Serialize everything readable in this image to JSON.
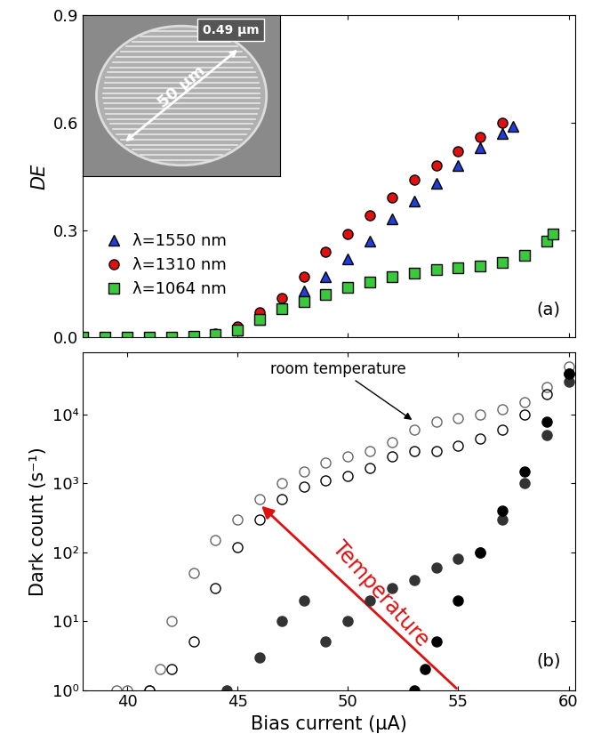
{
  "chart_data": [
    {
      "type": "scatter",
      "panel": "(a)",
      "y_label": "DE",
      "xlim": [
        38,
        60.3
      ],
      "xticks": [
        40,
        45,
        50,
        55,
        60
      ],
      "ylim": [
        0,
        0.9
      ],
      "yticks": [
        {
          "value": 0,
          "label": "0.0"
        },
        0.3,
        0.6,
        0.9
      ],
      "tick_labels": "y",
      "legend": "lower left",
      "annotations": [
        {
          "text": "50 μm"
        },
        {
          "text": "0.49 μm"
        }
      ],
      "series": [
        {
          "name": "λ=1550 nm",
          "color": "#1f3fd6",
          "marker": "triangle",
          "x": [
            38,
            39,
            40,
            41,
            42,
            43,
            44,
            45,
            46,
            47,
            48,
            49,
            50,
            51,
            52,
            53,
            54,
            55,
            56,
            57,
            57.5
          ],
          "values": [
            0,
            0,
            0,
            0,
            0,
            0,
            0.005,
            0.02,
            0.05,
            0.09,
            0.13,
            0.17,
            0.22,
            0.27,
            0.33,
            0.38,
            0.43,
            0.48,
            0.53,
            0.57,
            0.59
          ]
        },
        {
          "name": "λ=1310 nm",
          "color": "#e01010",
          "marker": "circle",
          "x": [
            38,
            39,
            40,
            41,
            42,
            43,
            44,
            45,
            46,
            47,
            48,
            49,
            50,
            51,
            52,
            53,
            54,
            55,
            56,
            57
          ],
          "values": [
            0,
            0,
            0,
            0,
            0,
            0.003,
            0.01,
            0.03,
            0.07,
            0.11,
            0.17,
            0.24,
            0.29,
            0.34,
            0.39,
            0.44,
            0.48,
            0.52,
            0.56,
            0.6
          ]
        },
        {
          "name": "λ=1064 nm",
          "color": "#3cc83c",
          "marker": "square",
          "x": [
            38,
            39,
            40,
            41,
            42,
            43,
            44,
            45,
            46,
            47,
            48,
            49,
            50,
            51,
            52,
            53,
            54,
            55,
            56,
            57,
            58,
            59,
            59.3
          ],
          "values": [
            0,
            0,
            0,
            0,
            0,
            0.003,
            0.008,
            0.02,
            0.05,
            0.08,
            0.1,
            0.12,
            0.14,
            0.155,
            0.17,
            0.18,
            0.19,
            0.195,
            0.2,
            0.21,
            0.23,
            0.27,
            0.29
          ]
        }
      ]
    },
    {
      "type": "scatter",
      "panel": "(b)",
      "x_label": "Bias current (μA)",
      "y_label": "Dark count (s⁻¹)",
      "log": "y",
      "xlim": [
        38,
        60.3
      ],
      "xticks": [
        40,
        45,
        50,
        55,
        60
      ],
      "ylim": [
        1,
        80000
      ],
      "yticks": [
        {
          "value": 1,
          "label": "10⁰"
        },
        {
          "value": 10,
          "label": "10¹"
        },
        {
          "value": 100,
          "label": "10²"
        },
        {
          "value": 1000,
          "label": "10³"
        },
        {
          "value": 10000,
          "label": "10⁴"
        }
      ],
      "annotations": [
        {
          "text": "room temperature",
          "x": 53,
          "y": 8000
        },
        {
          "text": "Temperature",
          "color": "#e01010",
          "x": 46,
          "y": 500,
          "from_x": 55,
          "from_y": 1
        }
      ],
      "series": [
        {
          "color": "#666666",
          "marker": "open circle",
          "x": [
            39.5,
            40,
            41,
            41.5,
            42,
            43,
            44,
            45,
            46,
            47,
            48,
            49,
            50,
            51,
            52,
            53,
            54,
            55,
            56,
            57,
            58,
            59,
            60
          ],
          "values": [
            1,
            1,
            1,
            2,
            10,
            50,
            150,
            300,
            600,
            1000,
            1500,
            2000,
            2500,
            3000,
            4000,
            6000,
            8000,
            9000,
            10000,
            12000,
            15000,
            25000,
            50000
          ]
        },
        {
          "color": "#000000",
          "marker": "open circle",
          "x": [
            41,
            42,
            43,
            44,
            45,
            46,
            47,
            48,
            49,
            50,
            51,
            52,
            53,
            54,
            55,
            56,
            57,
            58,
            59,
            60
          ],
          "values": [
            1,
            2,
            5,
            30,
            120,
            300,
            600,
            900,
            1100,
            1300,
            1700,
            2500,
            3000,
            3000,
            3500,
            4500,
            6000,
            10000,
            20000,
            40000
          ]
        },
        {
          "color": "#333333",
          "marker": "filled circle",
          "x": [
            44.5,
            46,
            47,
            48,
            49,
            50,
            51,
            52,
            53,
            54,
            55,
            56,
            57,
            58,
            59,
            60
          ],
          "values": [
            1,
            3,
            10,
            20,
            5,
            10,
            20,
            30,
            40,
            60,
            80,
            100,
            300,
            1000,
            5000,
            30000
          ]
        },
        {
          "color": "#000000",
          "marker": "filled circle",
          "x": [
            53,
            53.5,
            54,
            55,
            56,
            57,
            58,
            59,
            60
          ],
          "values": [
            1,
            2,
            5,
            20,
            100,
            400,
            1500,
            8000,
            40000
          ]
        }
      ]
    }
  ]
}
